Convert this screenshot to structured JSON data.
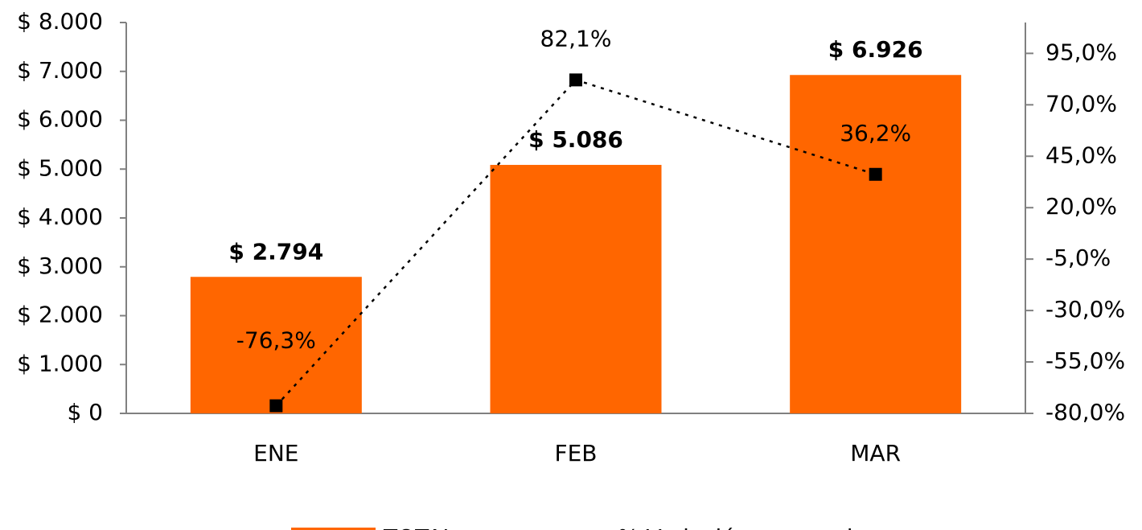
{
  "chart_data": {
    "type": "bar",
    "categories": [
      "ENE",
      "FEB",
      "MAR"
    ],
    "series": [
      {
        "name": "TOTAL",
        "color": "#ff6600",
        "values": [
          2794,
          5086,
          6926
        ],
        "value_labels": [
          "$ 2.794",
          "$ 5.086",
          "$ 6.926"
        ]
      },
      {
        "name": "% Variación mensual",
        "type": "line",
        "axis": "y2",
        "color": "#000000",
        "values": [
          -76.3,
          82.1,
          36.2
        ],
        "value_labels": [
          "-76,3%",
          "82,1%",
          "36,2%"
        ]
      }
    ],
    "ylim": [
      0,
      8000
    ],
    "yticks": [
      {
        "value": 0,
        "label": "$ 0"
      },
      {
        "value": 1000,
        "label": "$ 1.000"
      },
      {
        "value": 2000,
        "label": "$ 2.000"
      },
      {
        "value": 3000,
        "label": "$ 3.000"
      },
      {
        "value": 4000,
        "label": "$ 4.000"
      },
      {
        "value": 5000,
        "label": "$ 5.000"
      },
      {
        "value": 6000,
        "label": "$ 6.000"
      },
      {
        "value": 7000,
        "label": "$ 7.000"
      },
      {
        "value": 8000,
        "label": "$ 8.000"
      }
    ],
    "y2lim": [
      -80,
      110
    ],
    "y2ticks": [
      {
        "value": -80,
        "label": "-80,0%"
      },
      {
        "value": -55,
        "label": "-55,0%"
      },
      {
        "value": -30,
        "label": "-30,0%"
      },
      {
        "value": -5,
        "label": "-5,0%"
      },
      {
        "value": 20,
        "label": "20,0%"
      },
      {
        "value": 45,
        "label": "45,0%"
      },
      {
        "value": 70,
        "label": "70,0%"
      },
      {
        "value": 95,
        "label": "95,0%"
      }
    ],
    "legend": "bottom"
  }
}
